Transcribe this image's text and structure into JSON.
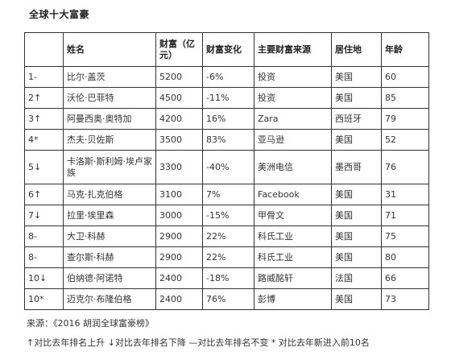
{
  "title": "全球十大富豪",
  "table": {
    "headers": [
      "",
      "姓名",
      "财富（亿元）",
      "财富变化",
      "主要财富来源",
      "居住地",
      "年龄"
    ],
    "rows": [
      [
        "1-",
        "比尔·盖茨",
        "5200",
        "-6%",
        "投资",
        "美国",
        "60"
      ],
      [
        "2↑",
        "沃伦·巴菲特",
        "4500",
        "-11%",
        "投资",
        "美国",
        "85"
      ],
      [
        "3↑",
        "阿曼西奥·奥特加",
        "4200",
        "16%",
        "Zara",
        "西班牙",
        "79"
      ],
      [
        "4*",
        "杰夫·贝佐斯",
        "3500",
        "83%",
        "亚马逊",
        "美国",
        "52"
      ],
      [
        "5↓",
        "卡洛斯·斯利姆·埃卢家族",
        "3300",
        "-40%",
        "美洲电信",
        "墨西哥",
        "76"
      ],
      [
        "6↑",
        "马克·扎克伯格",
        "3100",
        "7%",
        "Facebook",
        "美国",
        "31"
      ],
      [
        "7↓",
        "拉里·埃里森",
        "3000",
        "-15%",
        "甲骨文",
        "美国",
        "71"
      ],
      [
        "8-",
        "大卫·科赫",
        "2900",
        "22%",
        "科氏工业",
        "美国",
        "75"
      ],
      [
        "8-",
        "查尔斯·科赫",
        "2900",
        "22%",
        "科氏工业",
        "美国",
        "80"
      ],
      [
        "10↓",
        "伯纳德·阿诺特",
        "2400",
        "-18%",
        "路威酩轩",
        "法国",
        "66"
      ],
      [
        "10*",
        "迈克尔·布隆伯格",
        "2400",
        "76%",
        "彭博",
        "美国",
        "73"
      ]
    ]
  },
  "footer": {
    "source": "来源：《2016 胡润全球富豪榜》",
    "legend": "↑对比去年排名上升 ↓对比去年排名下降 —对比去年排名不变 * 对比去年新进入前10名"
  }
}
